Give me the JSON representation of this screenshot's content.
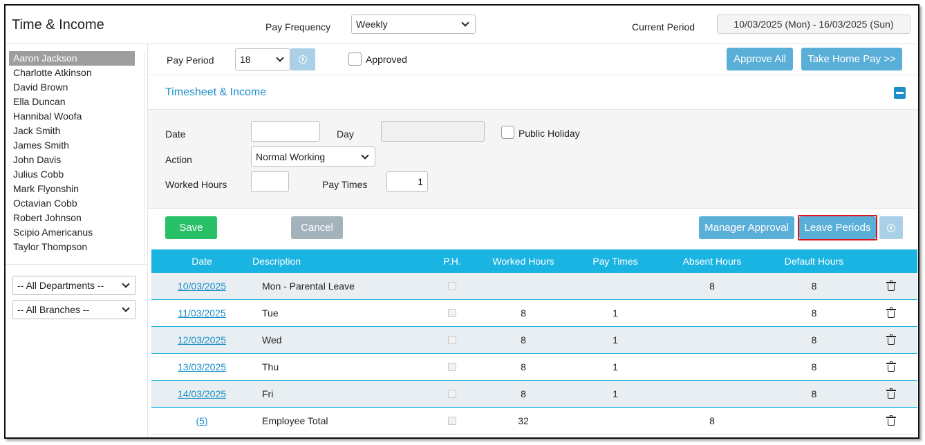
{
  "header": {
    "title": "Time & Income",
    "pay_frequency_label": "Pay Frequency",
    "pay_frequency_value": "Weekly",
    "current_period_label": "Current Period",
    "current_period_value": "10/03/2025 (Mon) - 16/03/2025 (Sun)"
  },
  "employees": [
    "Aaron Jackson",
    "Charlotte Atkinson",
    "David Brown",
    "Ella Duncan",
    "Hannibal Woofa",
    "Jack Smith",
    "James Smith",
    "John Davis",
    "Julius Cobb",
    "Mark Flyonshin",
    "Octavian Cobb",
    "Robert Johnson",
    "Scipio Americanus",
    "Taylor Thompson"
  ],
  "selected_employee": "Aaron Jackson",
  "filters": {
    "department": "-- All Departments --",
    "branch": "-- All Branches --"
  },
  "pay_period": {
    "label": "Pay Period",
    "value": "18",
    "approved_label": "Approved",
    "approve_all": "Approve All",
    "take_home_pay": "Take Home Pay >>"
  },
  "section": {
    "title": "Timesheet & Income"
  },
  "form": {
    "date_label": "Date",
    "date_value": "",
    "day_label": "Day",
    "day_value": "",
    "public_holiday_label": "Public Holiday",
    "action_label": "Action",
    "action_value": "Normal Working",
    "worked_hours_label": "Worked Hours",
    "worked_hours_value": "",
    "pay_times_label": "Pay Times",
    "pay_times_value": "1"
  },
  "actions": {
    "save": "Save",
    "cancel": "Cancel",
    "manager_approval": "Manager Approval",
    "leave_periods": "Leave Periods"
  },
  "table": {
    "headers": [
      "Date",
      "Description",
      "P.H.",
      "Worked Hours",
      "Pay Times",
      "Absent Hours",
      "Default Hours"
    ],
    "rows": [
      {
        "date": "10/03/2025",
        "description": "Mon - Parental Leave",
        "worked": "",
        "pay_times": "",
        "absent": "8",
        "default": "8"
      },
      {
        "date": "11/03/2025",
        "description": "Tue",
        "worked": "8",
        "pay_times": "1",
        "absent": "",
        "default": "8"
      },
      {
        "date": "12/03/2025",
        "description": "Wed",
        "worked": "8",
        "pay_times": "1",
        "absent": "",
        "default": "8"
      },
      {
        "date": "13/03/2025",
        "description": "Thu",
        "worked": "8",
        "pay_times": "1",
        "absent": "",
        "default": "8"
      },
      {
        "date": "14/03/2025",
        "description": "Fri",
        "worked": "8",
        "pay_times": "1",
        "absent": "",
        "default": "8"
      }
    ],
    "total": {
      "date": "(5)",
      "description": "Employee Total",
      "worked": "32",
      "pay_times": "",
      "absent": "8",
      "default": ""
    }
  },
  "colors": {
    "accent": "#1b8fc9",
    "table_header": "#1ab4e2",
    "button_blue": "#5aafd8",
    "save_green": "#28c067",
    "highlight_red": "#d9161c"
  }
}
